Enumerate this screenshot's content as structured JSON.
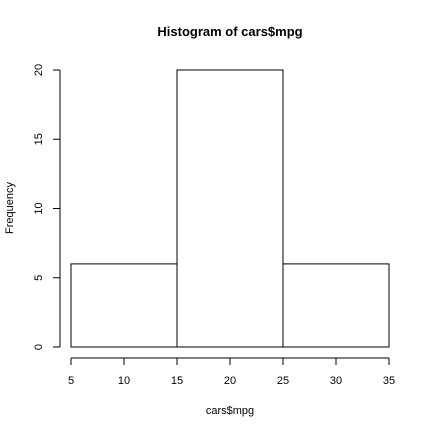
{
  "chart_data": {
    "type": "bar",
    "title": "Histogram of cars$mpg",
    "xlabel": "cars$mpg",
    "ylabel": "Frequency",
    "bins": [
      {
        "from": 5,
        "to": 15,
        "count": 6
      },
      {
        "from": 15,
        "to": 25,
        "count": 20
      },
      {
        "from": 25,
        "to": 35,
        "count": 6
      }
    ],
    "xlim": [
      5,
      35
    ],
    "ylim": [
      0,
      20
    ],
    "x_ticks": [
      "5",
      "10",
      "15",
      "20",
      "25",
      "30",
      "35"
    ],
    "y_ticks": [
      "0",
      "5",
      "10",
      "15",
      "20"
    ],
    "grid": false,
    "legend": "none",
    "colors": {
      "bar_fill": "#ffffff",
      "bar_stroke": "#000000",
      "axis": "#000000",
      "text": "#000000"
    }
  }
}
